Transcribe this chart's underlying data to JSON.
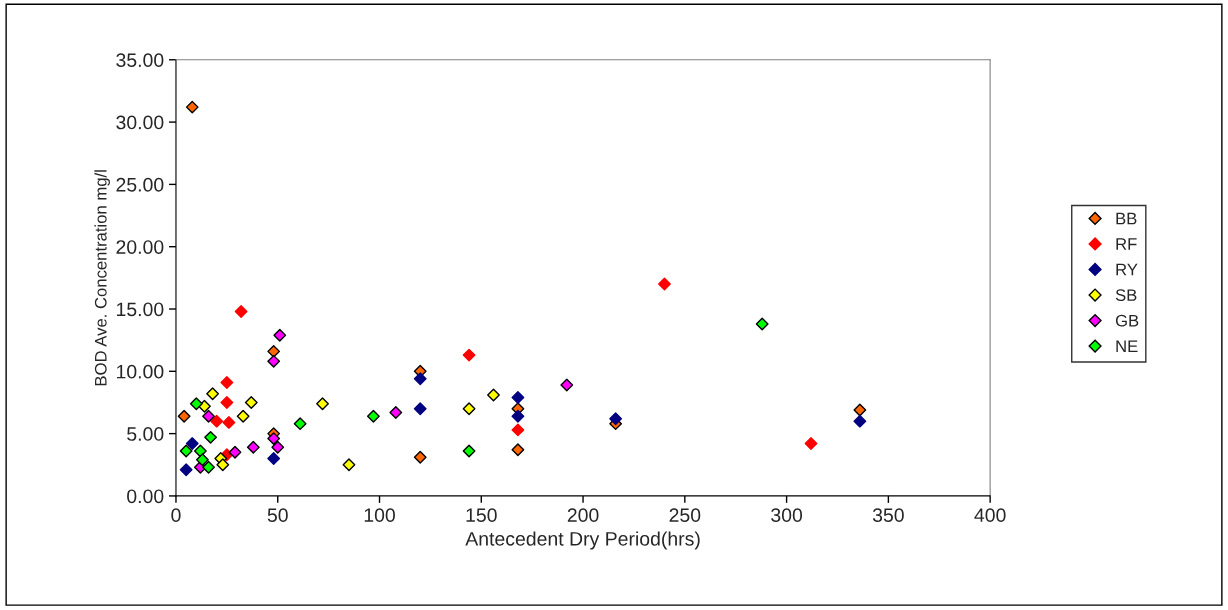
{
  "chart_data": {
    "type": "scatter",
    "xlabel": "Antecedent Dry Period(hrs)",
    "ylabel": "BOD Ave. Concentration mg/l",
    "marker": "diamond",
    "legend": "right",
    "grid": false,
    "xlim": [
      0,
      400
    ],
    "xticks": [
      0,
      50,
      100,
      150,
      200,
      250,
      300,
      350,
      400
    ],
    "ylim": [
      0,
      35
    ],
    "yticks": [
      {
        "value": 0,
        "label": "0.00"
      },
      {
        "value": 5,
        "label": "5.00"
      },
      {
        "value": 10,
        "label": "10.00"
      },
      {
        "value": 15,
        "label": "15.00"
      },
      {
        "value": 20,
        "label": "20.00"
      },
      {
        "value": 25,
        "label": "25.00"
      },
      {
        "value": 30,
        "label": "30.00"
      },
      {
        "value": 35,
        "label": "35.00"
      }
    ],
    "series": [
      {
        "name": "BB",
        "color": "#ff6600",
        "x": [
          8,
          4,
          48,
          48,
          120,
          120,
          168,
          168,
          216,
          336
        ],
        "values": [
          31.2,
          6.4,
          11.6,
          5.0,
          10.0,
          3.1,
          7.0,
          3.7,
          5.8,
          6.9
        ]
      },
      {
        "name": "RF",
        "color": "#ff0000",
        "x": [
          32,
          25,
          25,
          20,
          26,
          25,
          144,
          168,
          240,
          312
        ],
        "values": [
          14.8,
          9.1,
          7.5,
          6.0,
          5.9,
          3.3,
          11.3,
          5.3,
          17.0,
          4.2
        ]
      },
      {
        "name": "RY",
        "color": "#000080",
        "x": [
          5,
          8,
          48,
          120,
          120,
          168,
          168,
          216,
          336
        ],
        "values": [
          2.1,
          4.2,
          3.0,
          9.4,
          7.0,
          7.9,
          6.4,
          6.2,
          6.0
        ]
      },
      {
        "name": "SB",
        "color": "#ffff00",
        "x": [
          18,
          14,
          37,
          33,
          22,
          23,
          72,
          85,
          144,
          156
        ],
        "values": [
          8.2,
          7.2,
          7.5,
          6.4,
          3.0,
          2.5,
          7.4,
          2.5,
          7.0,
          8.1
        ]
      },
      {
        "name": "GB",
        "color": "#ff00ff",
        "x": [
          16,
          12,
          29,
          38,
          50,
          48,
          48,
          51,
          108,
          192
        ],
        "values": [
          6.4,
          2.3,
          3.5,
          3.9,
          3.9,
          10.8,
          4.6,
          12.9,
          6.7,
          8.9
        ]
      },
      {
        "name": "NE",
        "color": "#00ff00",
        "x": [
          10,
          5,
          12,
          17,
          13,
          16,
          61,
          97,
          144,
          288
        ],
        "values": [
          7.4,
          3.6,
          3.6,
          4.7,
          2.9,
          2.3,
          5.8,
          6.4,
          3.6,
          13.8
        ]
      }
    ]
  }
}
